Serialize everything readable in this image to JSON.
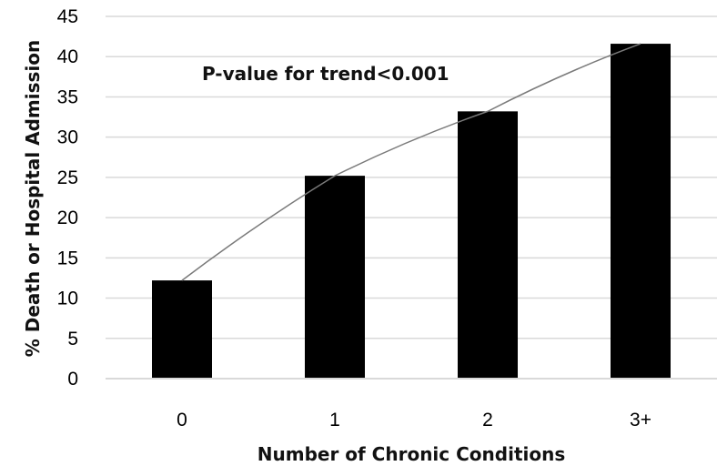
{
  "chart_data": {
    "type": "bar",
    "categories": [
      "0",
      "1",
      "2",
      "3+"
    ],
    "values": [
      12.2,
      25.2,
      33.2,
      41.6
    ],
    "title": "",
    "xlabel": "Number of Chronic Conditions",
    "ylabel": "% Death or Hospital Admission",
    "ylim": [
      0,
      45
    ],
    "yticks": [
      0,
      5,
      10,
      15,
      20,
      25,
      30,
      35,
      40,
      45
    ],
    "grid": true,
    "legend": "none",
    "annotation": "P-value for trend<0.001",
    "trend_line": true,
    "colors": {
      "bar": "#000000",
      "grid": "#d9d9d9",
      "trend": "#7a7a7a"
    }
  }
}
